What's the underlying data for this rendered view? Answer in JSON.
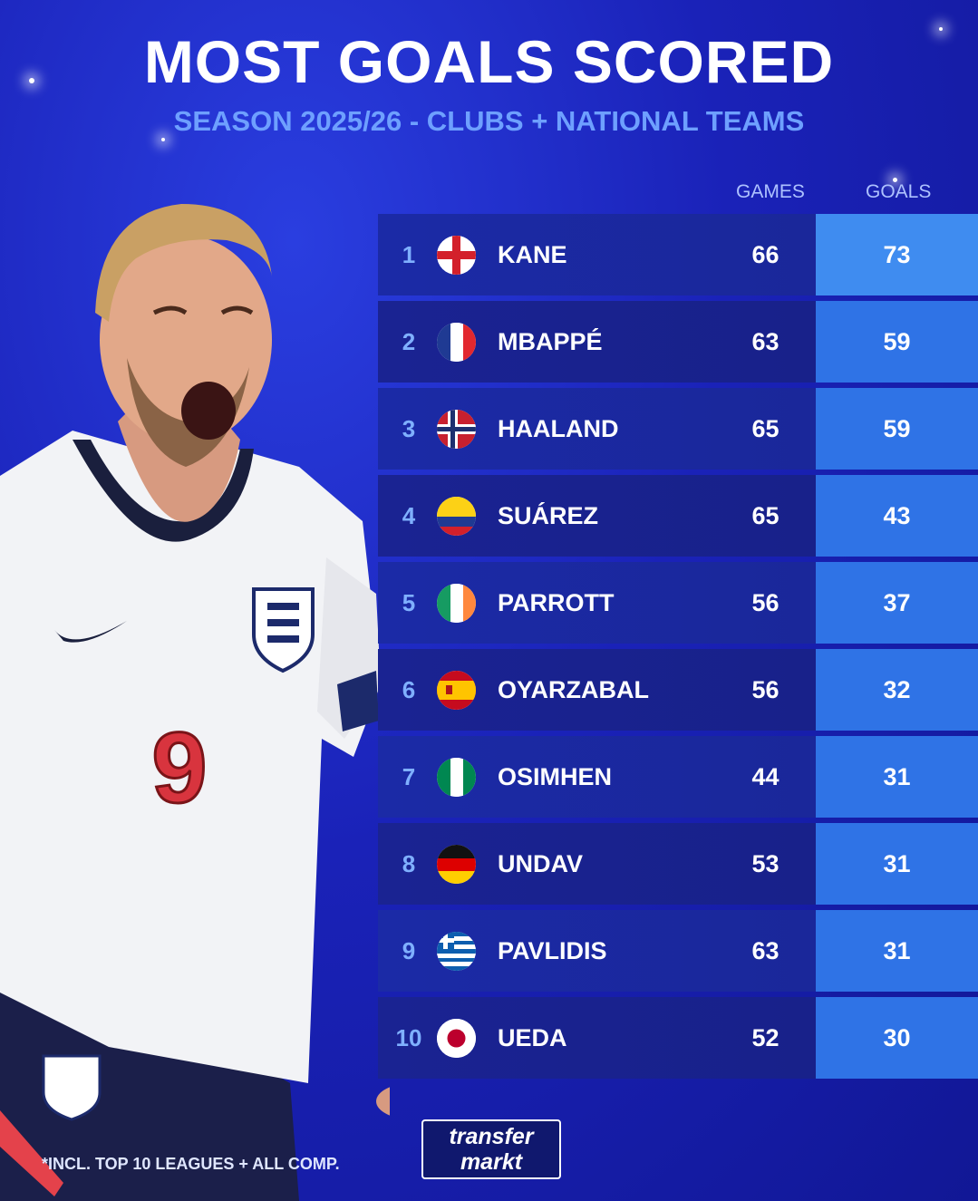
{
  "header": {
    "title": "MOST GOALS SCORED",
    "subtitle": "SEASON 2025/26 - CLUBS + NATIONAL TEAMS"
  },
  "columns": {
    "games": "GAMES",
    "goals": "GOALS"
  },
  "rows": [
    {
      "rank": "1",
      "flag": "england-flag",
      "name": "KANE",
      "games": "66",
      "goals": "73"
    },
    {
      "rank": "2",
      "flag": "france-flag",
      "name": "MBAPPÉ",
      "games": "63",
      "goals": "59"
    },
    {
      "rank": "3",
      "flag": "norway-flag",
      "name": "HAALAND",
      "games": "65",
      "goals": "59"
    },
    {
      "rank": "4",
      "flag": "colombia-flag",
      "name": "SUÁREZ",
      "games": "65",
      "goals": "43"
    },
    {
      "rank": "5",
      "flag": "ireland-flag",
      "name": "PARROTT",
      "games": "56",
      "goals": "37"
    },
    {
      "rank": "6",
      "flag": "spain-flag",
      "name": "OYARZABAL",
      "games": "56",
      "goals": "32"
    },
    {
      "rank": "7",
      "flag": "nigeria-flag",
      "name": "OSIMHEN",
      "games": "44",
      "goals": "31"
    },
    {
      "rank": "8",
      "flag": "germany-flag",
      "name": "UNDAV",
      "games": "53",
      "goals": "31"
    },
    {
      "rank": "9",
      "flag": "greece-flag",
      "name": "PAVLIDIS",
      "games": "63",
      "goals": "31"
    },
    {
      "rank": "10",
      "flag": "japan-flag",
      "name": "UEDA",
      "games": "52",
      "goals": "30"
    }
  ],
  "footnote": "*INCL. TOP 10 LEAGUES + ALL COMP.",
  "logo": {
    "line1": "transfer",
    "line2": "markt"
  },
  "player": {
    "shirt_number": "9"
  },
  "colors": {
    "background": "#1a22b8",
    "goals_cell": "#2f73e6",
    "accent_text": "#6ea0ff"
  }
}
